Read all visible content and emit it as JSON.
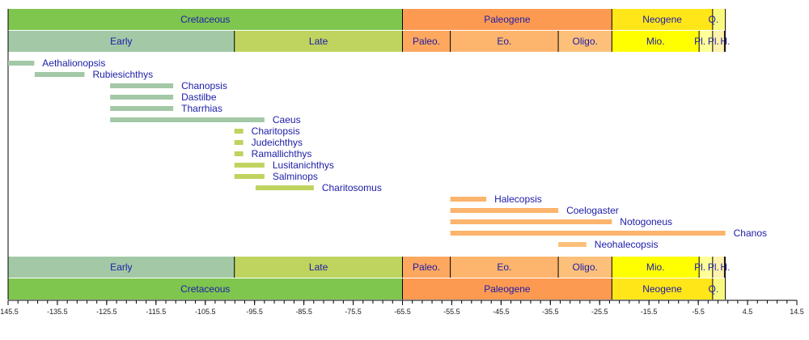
{
  "chart_data": {
    "type": "timeline",
    "xlim": [
      -145.5,
      14.5
    ],
    "x_ticks": [
      -145.5,
      -135.5,
      -125.5,
      -115.5,
      -105.5,
      -95.5,
      -85.5,
      -75.5,
      -65.5,
      -55.5,
      -45.5,
      -35.5,
      -25.5,
      -15.5,
      -5.5,
      4.5,
      14.5
    ],
    "periods": [
      {
        "label": "Cretaceous",
        "start": -145.5,
        "end": -65.5,
        "color": "#7fc64e"
      },
      {
        "label": "Paleogene",
        "start": -65.5,
        "end": -23.03,
        "color": "#fd9a52"
      },
      {
        "label": "Neogene",
        "start": -23.03,
        "end": -2.59,
        "color": "#ffe619"
      },
      {
        "label": "Q.",
        "start": -2.59,
        "end": 0,
        "color": "#f9f97f"
      }
    ],
    "epochs": [
      {
        "label": "Early",
        "start": -145.5,
        "end": -99.6,
        "color": "#a3c8a6"
      },
      {
        "label": "Late",
        "start": -99.6,
        "end": -65.5,
        "color": "#bfd35f"
      },
      {
        "label": "Paleo.",
        "start": -65.5,
        "end": -55.8,
        "color": "#fda75f"
      },
      {
        "label": "Eo.",
        "start": -55.8,
        "end": -33.9,
        "color": "#fdb46c"
      },
      {
        "label": "Oligo.",
        "start": -33.9,
        "end": -23.03,
        "color": "#fdc07a"
      },
      {
        "label": "Mio.",
        "start": -23.03,
        "end": -5.33,
        "color": "#ffff00"
      },
      {
        "label": "Pl.",
        "start": -5.33,
        "end": -2.59,
        "color": "#ffff99"
      },
      {
        "label": "Pl.",
        "start": -2.59,
        "end": -0.2,
        "color": "#fff2ae"
      },
      {
        "label": "H.",
        "start": -0.2,
        "end": 0,
        "color": "#fef2e0"
      }
    ],
    "taxa": [
      {
        "name": "Aethalionopsis",
        "start": -145.5,
        "end": -140.2,
        "color": "#a3c8a6"
      },
      {
        "name": "Rubiesichthys",
        "start": -140.1,
        "end": -130.0,
        "color": "#a3c8a6"
      },
      {
        "name": "Chanopsis",
        "start": -124.8,
        "end": -112.0,
        "color": "#a3c8a6"
      },
      {
        "name": "Dastilbe",
        "start": -124.8,
        "end": -112.0,
        "color": "#a3c8a6"
      },
      {
        "name": "Tharrhias",
        "start": -124.8,
        "end": -112.0,
        "color": "#a3c8a6"
      },
      {
        "name": "Caeus",
        "start": -124.8,
        "end": -93.5,
        "color": "#a3c8a6"
      },
      {
        "name": "Charitopsis",
        "start": -99.6,
        "end": -97.8,
        "color": "#bfd35f"
      },
      {
        "name": "Judeichthys",
        "start": -99.6,
        "end": -97.8,
        "color": "#bfd35f"
      },
      {
        "name": "Ramallichthys",
        "start": -99.6,
        "end": -97.8,
        "color": "#bfd35f"
      },
      {
        "name": "Lusitanichthys",
        "start": -99.6,
        "end": -93.5,
        "color": "#bfd35f"
      },
      {
        "name": "Salminops",
        "start": -99.6,
        "end": -93.5,
        "color": "#bfd35f"
      },
      {
        "name": "Charitosomus",
        "start": -95.3,
        "end": -83.5,
        "color": "#bfd35f"
      },
      {
        "name": "Halecopsis",
        "start": -55.8,
        "end": -48.5,
        "color": "#fdb46c"
      },
      {
        "name": "Coelogaster",
        "start": -55.8,
        "end": -33.9,
        "color": "#fdb46c"
      },
      {
        "name": "Notogoneus",
        "start": -55.8,
        "end": -23.03,
        "color": "#fdb46c"
      },
      {
        "name": "Chanos",
        "start": -55.8,
        "end": 0,
        "color": "#fdb46c"
      },
      {
        "name": "Neohalecopsis",
        "start": -33.9,
        "end": -28.2,
        "color": "#fdc07a"
      }
    ]
  }
}
